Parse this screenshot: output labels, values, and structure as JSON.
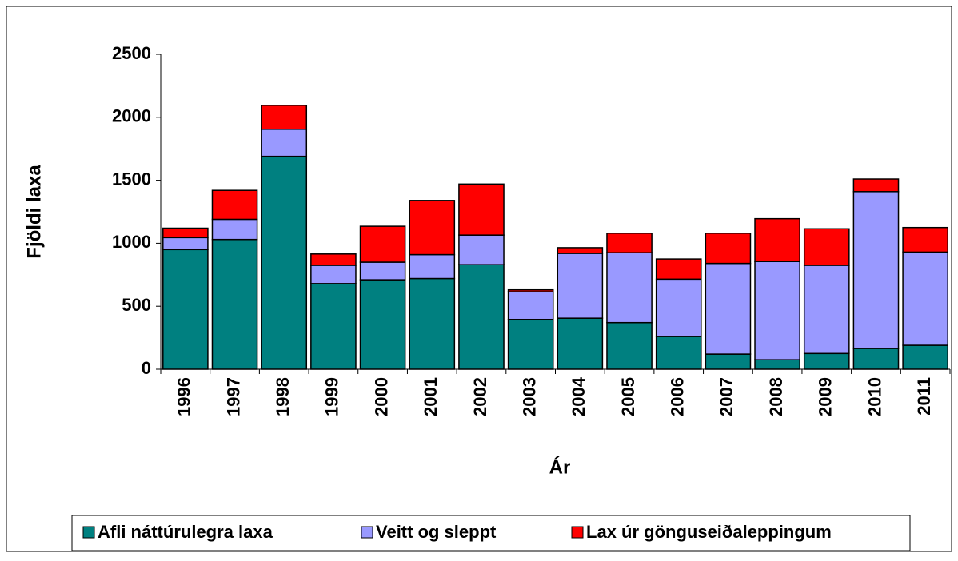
{
  "chart_data": {
    "type": "stacked_bar",
    "y_label": "Fjöldi laxa",
    "x_label": "Ár",
    "categories": [
      "1996",
      "1997",
      "1998",
      "1999",
      "2000",
      "2001",
      "2002",
      "2003",
      "2004",
      "2005",
      "2006",
      "2007",
      "2008",
      "2009",
      "2010",
      "2011"
    ],
    "series": [
      {
        "name": "Afli náttúrulegra laxa",
        "color": "#008080",
        "values": [
          950,
          1030,
          1690,
          680,
          710,
          720,
          830,
          395,
          405,
          370,
          260,
          120,
          75,
          125,
          165,
          190
        ]
      },
      {
        "name": "Veitt og sleppt",
        "color": "#9999ff",
        "values": [
          95,
          160,
          215,
          145,
          140,
          190,
          235,
          220,
          515,
          555,
          455,
          720,
          780,
          700,
          1245,
          740
        ]
      },
      {
        "name": "Lax úr gönguseiðaleppingum",
        "color": "#ff0000",
        "values": [
          75,
          230,
          190,
          90,
          285,
          430,
          405,
          15,
          45,
          155,
          160,
          240,
          340,
          290,
          100,
          195
        ]
      }
    ],
    "ylim": [
      0,
      2500
    ],
    "yticks": [
      0,
      500,
      1000,
      1500,
      2000,
      2500
    ],
    "grid": false
  }
}
